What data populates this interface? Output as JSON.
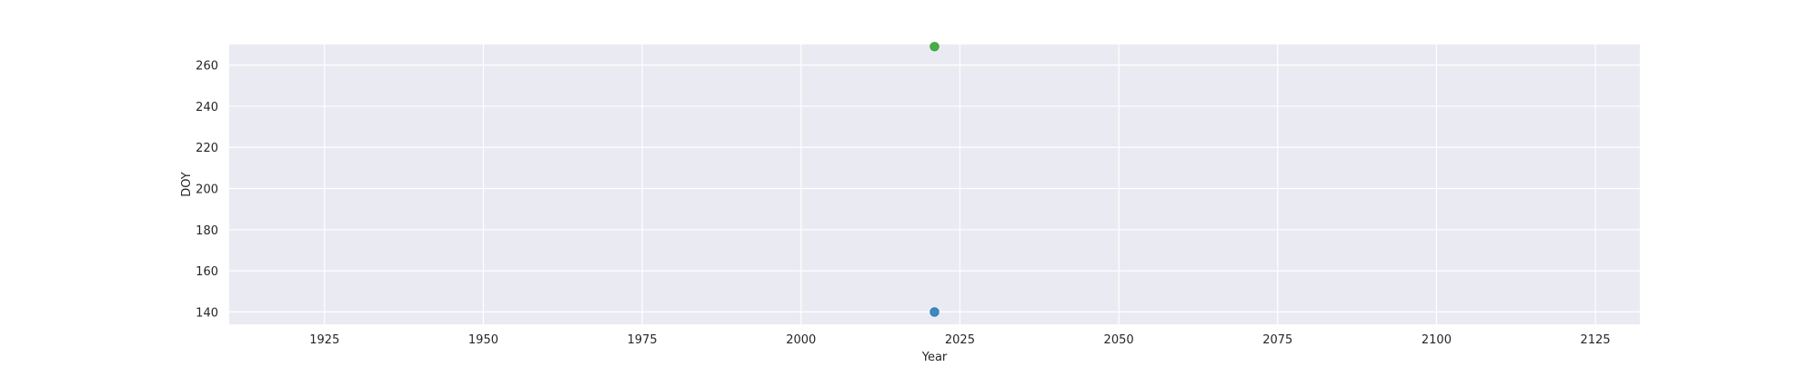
{
  "chart_data": {
    "type": "scatter",
    "title": "",
    "xlabel": "Year",
    "ylabel": "DOY",
    "xlim": [
      1910,
      2132
    ],
    "ylim": [
      134,
      270
    ],
    "xticks": [
      1925,
      1950,
      1975,
      2000,
      2025,
      2050,
      2075,
      2100,
      2125
    ],
    "yticks": [
      140,
      160,
      180,
      200,
      220,
      240,
      260
    ],
    "grid": true,
    "background": "#eaeaf2",
    "grid_color": "#ffffff",
    "series": [
      {
        "color": "#1f77b4",
        "points": [
          {
            "x": 2021,
            "y": 140
          }
        ]
      },
      {
        "color": "#2ca02c",
        "points": [
          {
            "x": 2021,
            "y": 269
          }
        ]
      }
    ]
  }
}
